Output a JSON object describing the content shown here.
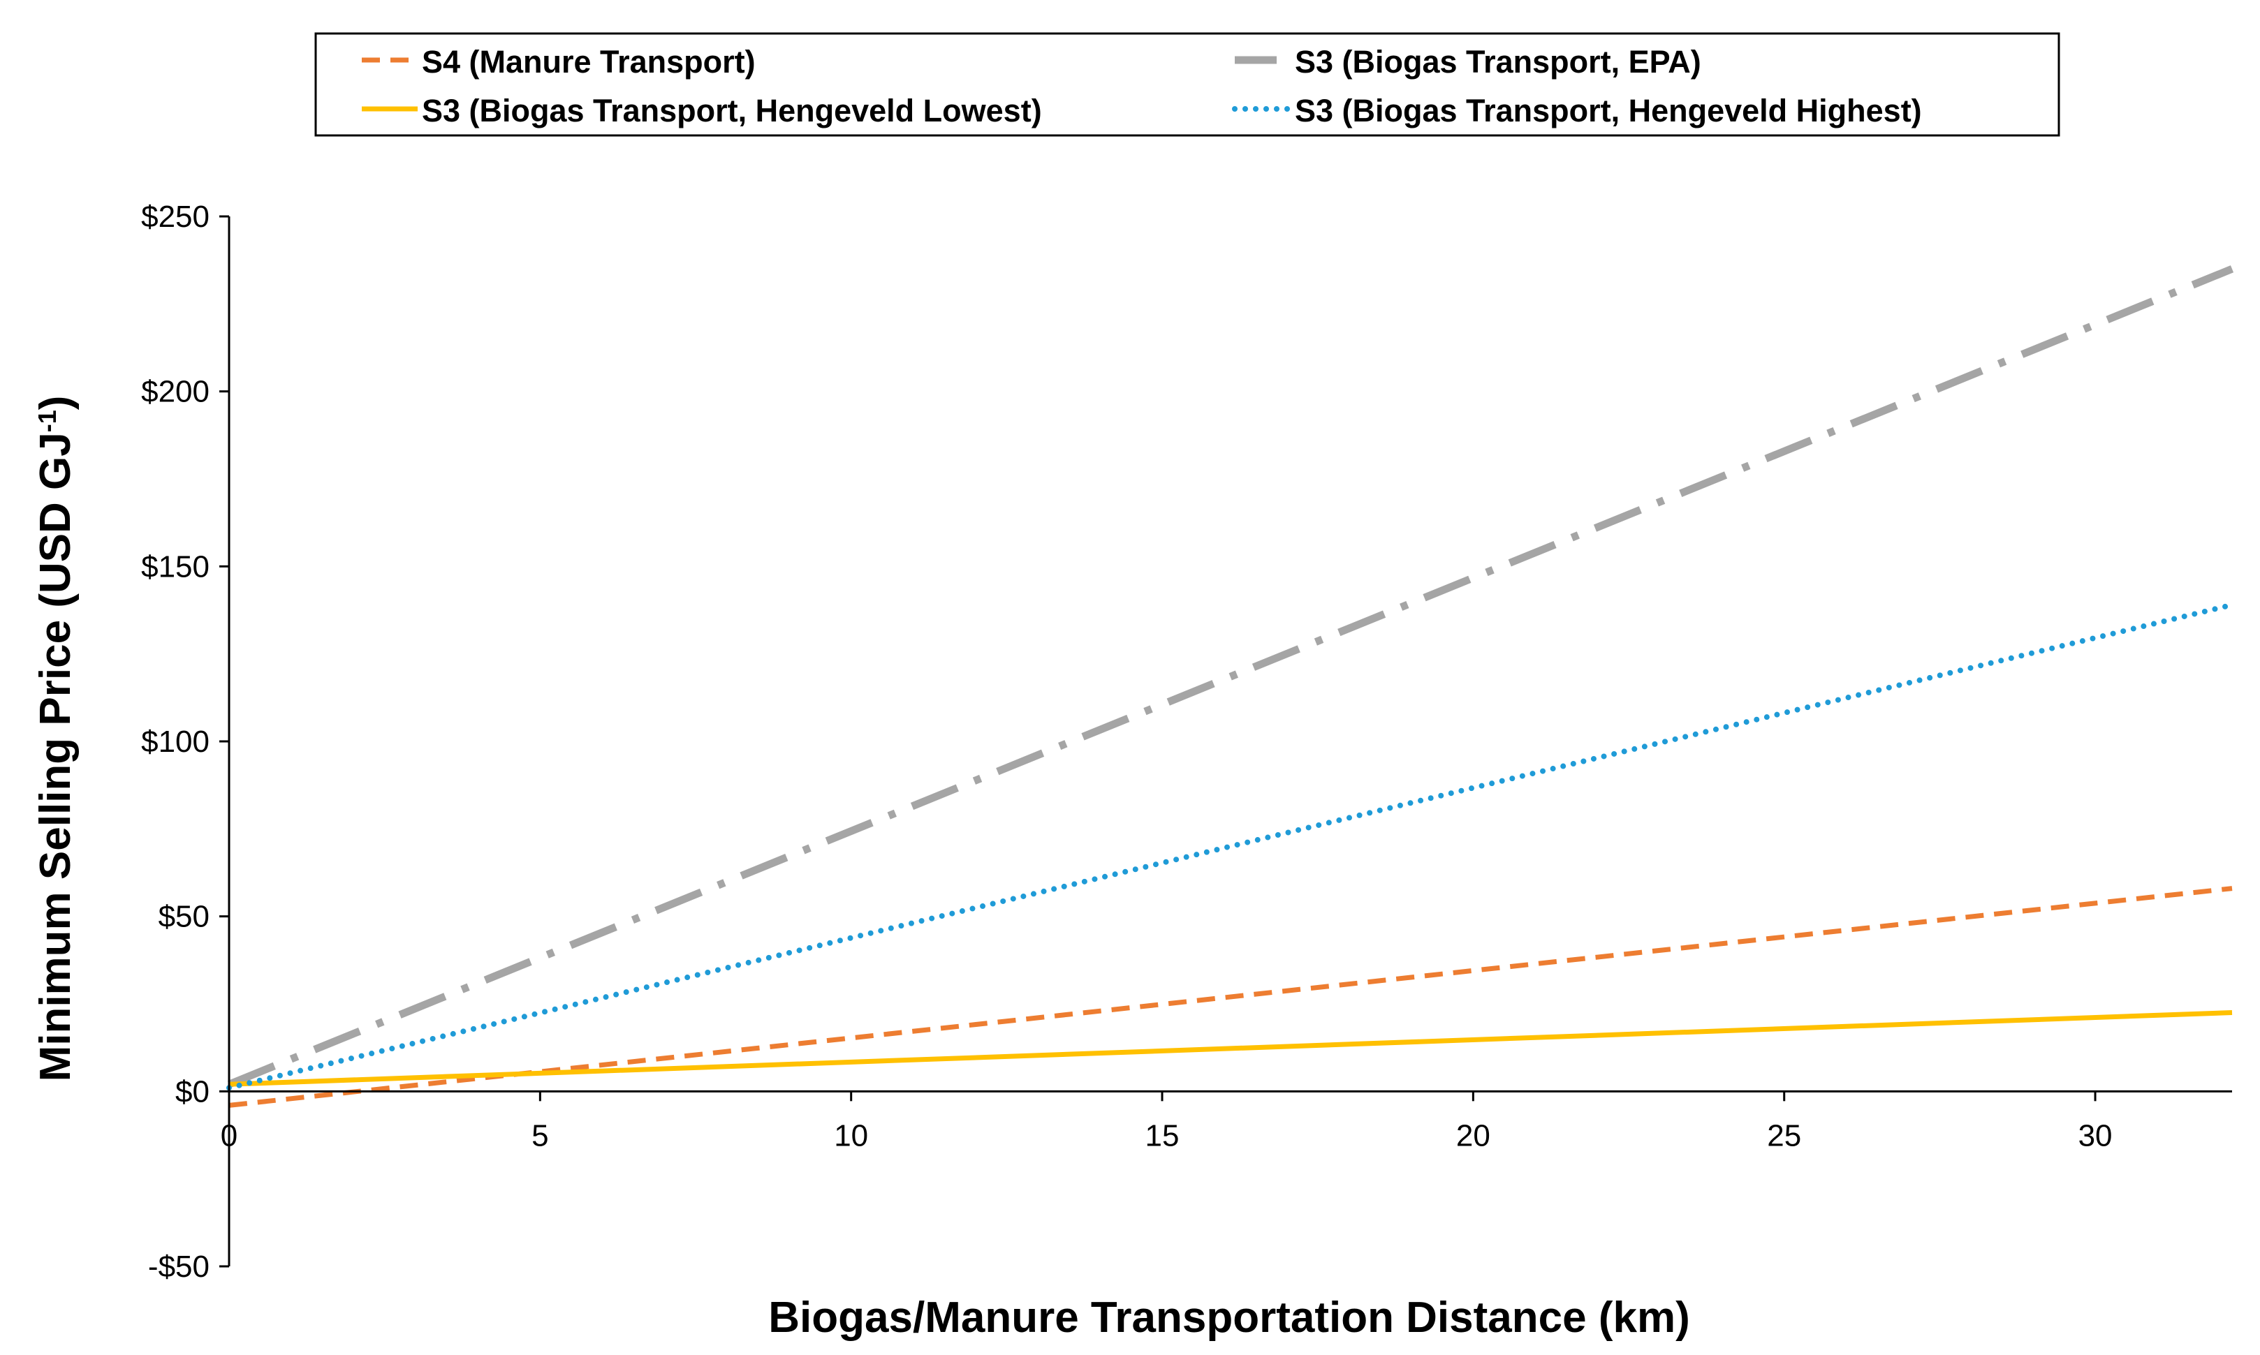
{
  "chart_data": {
    "type": "line",
    "title": "",
    "xlabel": "Biogas/Manure Transportation Distance (km)",
    "ylabel_main": "Minimum Selling Price (USD GJ",
    "ylabel_sup": "-1",
    "ylabel_close": ")",
    "xlim": [
      0,
      32.2
    ],
    "ylim": [
      -50,
      250
    ],
    "x_ticks": [
      0,
      5,
      10,
      15,
      20,
      25,
      30
    ],
    "y_ticks": [
      250,
      200,
      150,
      100,
      50,
      0,
      -50
    ],
    "x_tick_labels": [
      "0",
      "5",
      "10",
      "15",
      "20",
      "25",
      "30"
    ],
    "y_tick_labels": [
      "$250",
      "$200",
      "$150",
      "$100",
      "$50",
      "$0",
      "-$50"
    ],
    "legend_position": "top",
    "grid": false,
    "series": [
      {
        "name": "S4 (Manure Transport)",
        "color": "#ED7D31",
        "style": "dashed",
        "x": [
          0,
          32.2
        ],
        "y": [
          -4,
          58
        ]
      },
      {
        "name": "S3 (Biogas Transport, EPA)",
        "color": "#A5A5A5",
        "style": "dashdot",
        "x": [
          0,
          32.2
        ],
        "y": [
          2,
          235
        ]
      },
      {
        "name": "S3 (Biogas Transport, Hengeveld Lowest)",
        "color": "#FFC000",
        "style": "solid",
        "x": [
          0,
          32.2
        ],
        "y": [
          2,
          22.5
        ]
      },
      {
        "name": "S3 (Biogas Transport, Hengeveld Highest)",
        "color": "#1F9BD7",
        "style": "dotted",
        "x": [
          0,
          32.2
        ],
        "y": [
          1,
          139
        ]
      }
    ]
  }
}
